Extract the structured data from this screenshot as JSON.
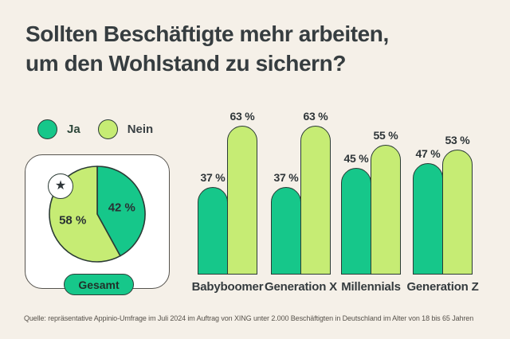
{
  "page": {
    "background": "#F5F0E8"
  },
  "title": {
    "line1": "Sollten Beschäftigte mehr arbeiten,",
    "line2": "um den Wohlstand zu sichern?"
  },
  "legend": {
    "items": [
      {
        "label": "Ja",
        "color": "#16C78A",
        "label_color": "#2F483C"
      },
      {
        "label": "Nein",
        "color": "#C6EC74",
        "label_color": "#3A4144"
      }
    ]
  },
  "pie_card": {
    "group_label": "Gesamt",
    "badge_icon": "star-icon",
    "badge_glyph": "★"
  },
  "source": "Quelle: repräsentative Appinio-Umfrage im Juli 2024 im Auftrag von XING unter 2.000 Beschäftigten in Deutschland im Alter von 18 bis 65 Jahren",
  "colors": {
    "ja": "#16C78A",
    "nein": "#C6EC74",
    "outline": "#2B3B35",
    "text_dark": "#363D40"
  },
  "chart_data": [
    {
      "type": "pie",
      "title": "Gesamt",
      "labels": [
        "Ja",
        "Nein"
      ],
      "values": [
        42,
        58
      ],
      "colors": [
        "#16C78A",
        "#C6EC74"
      ],
      "value_suffix": " %",
      "start_angle_deg": -90,
      "direction": "clockwise"
    },
    {
      "type": "bar",
      "title": "Sollten Beschäftigte mehr arbeiten, um den Wohlstand zu sichern?",
      "categories": [
        "Babyboomer",
        "Generation X",
        "Millennials",
        "Generation Z"
      ],
      "series": [
        {
          "name": "Ja",
          "values": [
            37,
            37,
            45,
            47
          ],
          "color": "#16C78A"
        },
        {
          "name": "Nein",
          "values": [
            63,
            63,
            55,
            53
          ],
          "color": "#C6EC74"
        }
      ],
      "value_suffix": " %",
      "ylim": [
        0,
        63
      ],
      "grid": false,
      "legend_position": "top-left"
    }
  ]
}
